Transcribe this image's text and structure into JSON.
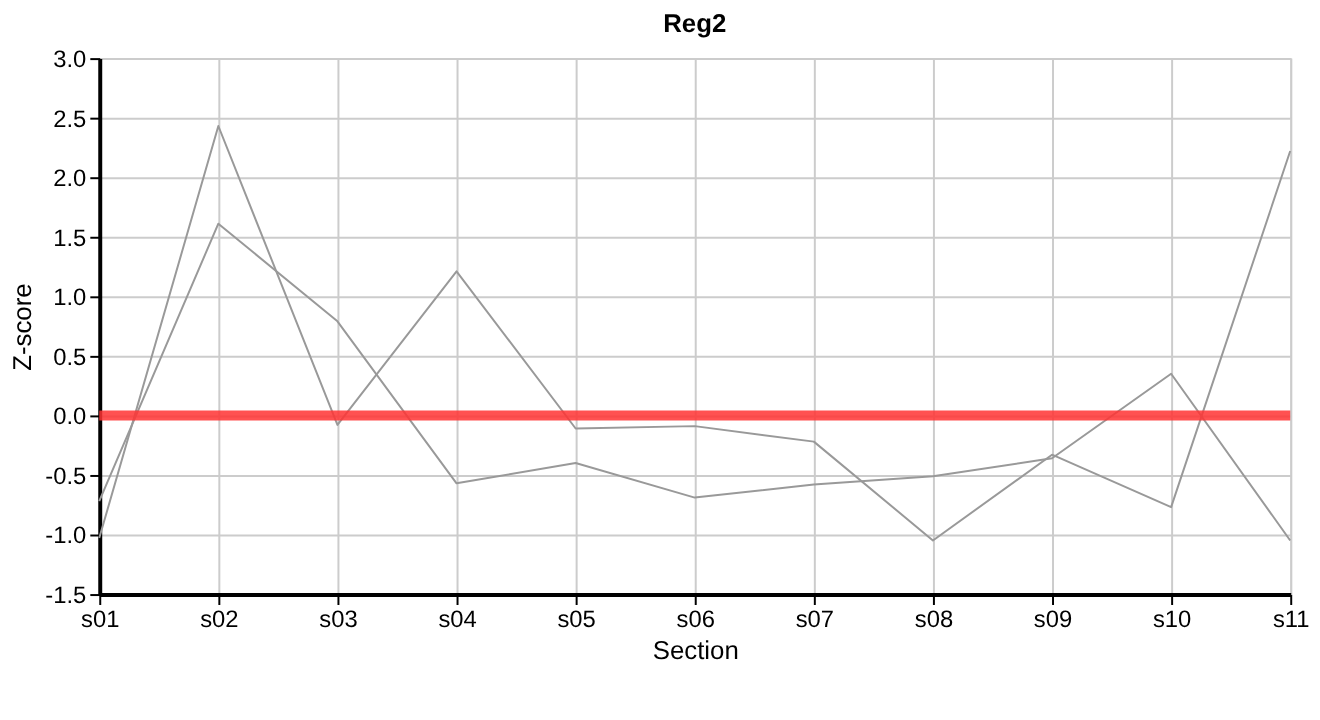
{
  "chart_data": {
    "type": "line",
    "title": "Reg2",
    "xlabel": "Section",
    "ylabel": "Z-score",
    "categories": [
      "s01",
      "s02",
      "s03",
      "s04",
      "s05",
      "s06",
      "s07",
      "s08",
      "s09",
      "s10",
      "s11"
    ],
    "series": [
      {
        "color": "#999999",
        "values": [
          -1.03,
          2.43,
          -0.08,
          1.21,
          -0.11,
          -0.09,
          -0.22,
          -1.05,
          -0.33,
          -0.77,
          2.22
        ]
      },
      {
        "color": "#999999",
        "values": [
          -0.72,
          1.61,
          0.79,
          -0.57,
          -0.4,
          -0.69,
          -0.58,
          -0.51,
          -0.36,
          0.35,
          -1.05
        ]
      }
    ],
    "ylim": [
      -1.5,
      3.0
    ],
    "yticks": [
      -1.5,
      {
        "value": -1,
        "label": "-1.0"
      },
      -0.5,
      {
        "value": 0,
        "label": "0.0"
      },
      0.5,
      {
        "value": 1,
        "label": "1.0"
      },
      1.5,
      {
        "value": 2,
        "label": "2.0"
      },
      2.5,
      {
        "value": 3,
        "label": "3.0"
      }
    ],
    "ref_lines": [
      {
        "axis": "y",
        "value": 0,
        "color": "#ff3333"
      }
    ],
    "grid": true,
    "legend": false,
    "marker": "none",
    "line_style": "solid"
  }
}
